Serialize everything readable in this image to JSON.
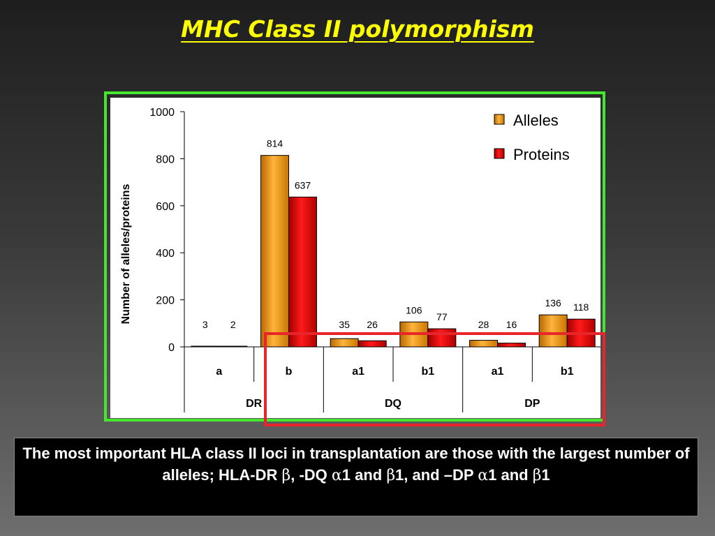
{
  "slide": {
    "title": "MHC Class II polymorphism",
    "caption": {
      "part1": "The most important HLA class II loci in transplantation are those with the largest number of alleles; HLA-DR ",
      "beta1": "β",
      "part2": ", -DQ ",
      "alpha1": "α",
      "part3": "1 and ",
      "beta2": "β",
      "part4": "1, and –DP ",
      "alpha2": "α",
      "part5": "1 and ",
      "beta3": "β",
      "part6": "1"
    }
  },
  "colors": {
    "alleles": "#f0940a",
    "proteins": "#e00000",
    "title": "#ffff00",
    "green_frame": "#44e62e",
    "red_frame": "#e8252a"
  },
  "chart_data": {
    "type": "bar",
    "ylabel": "Number of alleles/proteins",
    "ylim": [
      0,
      1000
    ],
    "yticks": [
      "0",
      "200",
      "400",
      "600",
      "800",
      "1000"
    ],
    "categories": [
      "a",
      "b",
      "a1",
      "b1",
      "a1",
      "b1"
    ],
    "groups": [
      "DR",
      "DQ",
      "DP"
    ],
    "series": [
      {
        "name": "Alleles",
        "values": [
          3,
          814,
          35,
          106,
          28,
          136
        ]
      },
      {
        "name": "Proteins",
        "values": [
          2,
          637,
          26,
          77,
          16,
          118
        ]
      }
    ],
    "legend_position": "top-right",
    "grid": false
  }
}
